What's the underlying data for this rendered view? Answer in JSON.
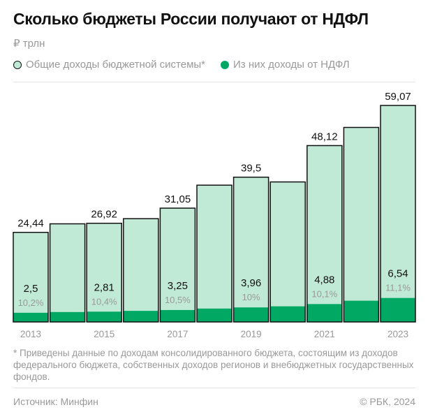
{
  "title": "Сколько бюджеты России получают от НДФЛ",
  "unit": "₽ трлн",
  "legend": {
    "total": "Общие доходы бюджетной системы*",
    "ndfl": "Из них доходы от НДФЛ"
  },
  "colors": {
    "total": "#c0ead6",
    "ndfl": "#00a864",
    "outline": "#111111"
  },
  "chart_data": {
    "type": "bar",
    "categories": [
      "2013",
      "2014",
      "2015",
      "2016",
      "2017",
      "2018",
      "2019",
      "2020",
      "2021",
      "2022",
      "2023"
    ],
    "tick_labels": [
      "2013",
      "",
      "2015",
      "",
      "2017",
      "",
      "2019",
      "",
      "2021",
      "",
      "2023"
    ],
    "series": [
      {
        "name": "Общие доходы бюджетной системы*",
        "values": [
          24.44,
          26.77,
          26.92,
          28.18,
          31.05,
          37.32,
          39.5,
          38.2,
          48.12,
          53.07,
          59.07
        ]
      },
      {
        "name": "Из них доходы от НДФЛ",
        "values": [
          2.5,
          2.7,
          2.81,
          3.02,
          3.25,
          3.65,
          3.96,
          4.26,
          4.88,
          5.79,
          6.54
        ]
      }
    ],
    "total_labels": [
      "24,44",
      "",
      "26,92",
      "",
      "31,05",
      "",
      "39,5",
      "",
      "48,12",
      "",
      "59,07"
    ],
    "ndfl_labels": [
      "2,5",
      "",
      "2,81",
      "",
      "3,25",
      "",
      "3,96",
      "",
      "4,88",
      "",
      "6,54"
    ],
    "share_labels": [
      "10,2%",
      "",
      "10,4%",
      "",
      "10,5%",
      "",
      "10%",
      "",
      "10,1%",
      "",
      "11,1%"
    ],
    "ylim": [
      0,
      60
    ],
    "grid": false,
    "legend_position": "top-left"
  },
  "footnote": "* Приведены данные по доходам консолидированного бюджета, состоящим из доходов федерального бюджета, собственных доходов регионов и внебюджетных государственных фондов.",
  "source": "Источник: Минфин",
  "copyright": "© РБК, 2024"
}
